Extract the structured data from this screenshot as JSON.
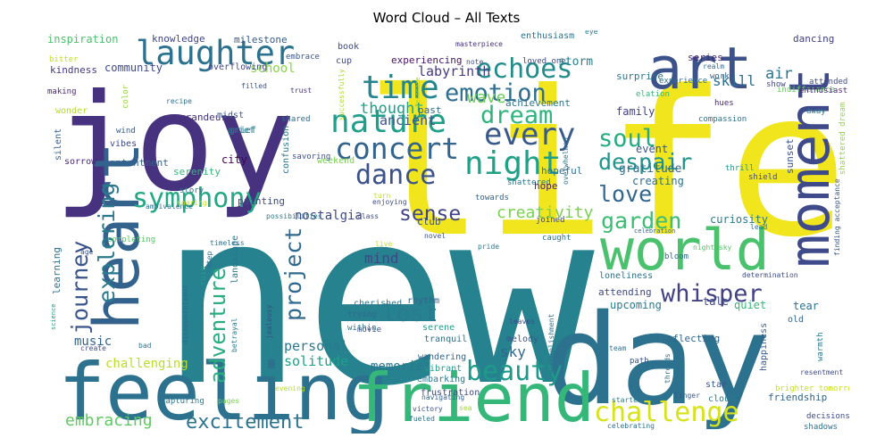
{
  "chart_data": {
    "type": "wordcloud",
    "title": "Word Cloud – All Texts",
    "background": "#ffffff",
    "colormap": "viridis",
    "words": [
      {
        "text": "new",
        "color": "#26828e"
      },
      {
        "text": "life",
        "color": "#f1e51d"
      },
      {
        "text": "joy",
        "color": "#46327e"
      },
      {
        "text": "day",
        "color": "#2c728e"
      },
      {
        "text": "feeling",
        "color": "#2c728e"
      },
      {
        "text": "friend",
        "color": "#35b779"
      },
      {
        "text": "heart",
        "color": "#33638d"
      },
      {
        "text": "world",
        "color": "#4ac16d"
      },
      {
        "text": "art",
        "color": "#3b528b"
      },
      {
        "text": "moment",
        "color": "#3e4a89"
      },
      {
        "text": "laughter",
        "color": "#2c728e"
      },
      {
        "text": "time",
        "color": "#25858e"
      },
      {
        "text": "nature",
        "color": "#1f9e89"
      },
      {
        "text": "concert",
        "color": "#32648e"
      },
      {
        "text": "night",
        "color": "#1fa187"
      },
      {
        "text": "emotion",
        "color": "#2e6e8e"
      },
      {
        "text": "echoes",
        "color": "#228c8d"
      },
      {
        "text": "every",
        "color": "#38598c"
      },
      {
        "text": "dream",
        "color": "#2fb47c"
      },
      {
        "text": "dance",
        "color": "#3b528b"
      },
      {
        "text": "symphony",
        "color": "#22a884"
      },
      {
        "text": "journey",
        "color": "#3a548c"
      },
      {
        "text": "challenge",
        "color": "#d8e219"
      },
      {
        "text": "beauty",
        "color": "#1f9a8a"
      },
      {
        "text": "soul",
        "color": "#25ab82"
      },
      {
        "text": "despair",
        "color": "#20938c"
      },
      {
        "text": "love",
        "color": "#31678e"
      },
      {
        "text": "whisper",
        "color": "#424186"
      },
      {
        "text": "garden",
        "color": "#3dbc74"
      },
      {
        "text": "adventure",
        "color": "#27ad81"
      },
      {
        "text": "exploring",
        "color": "#2a788e"
      },
      {
        "text": "project",
        "color": "#30698e"
      },
      {
        "text": "lost",
        "color": "#297b8e"
      },
      {
        "text": "sense",
        "color": "#404588"
      },
      {
        "text": "excitement",
        "color": "#2c728e"
      },
      {
        "text": "embracing",
        "color": "#5ec962"
      },
      {
        "text": "thought",
        "color": "#1fa088"
      },
      {
        "text": "wave",
        "color": "#6ccd5a"
      },
      {
        "text": "labyrinth",
        "color": "#443983"
      },
      {
        "text": "ancient",
        "color": "#3a548c"
      },
      {
        "text": "creativity",
        "color": "#7ad151"
      },
      {
        "text": "nostalgia",
        "color": "#3e4989"
      },
      {
        "text": "mind",
        "color": "#3f4788"
      },
      {
        "text": "sky",
        "color": "#31678e"
      },
      {
        "text": "memories",
        "color": "#2a788e"
      },
      {
        "text": "personal",
        "color": "#297a8e"
      },
      {
        "text": "solitude",
        "color": "#1fa088"
      },
      {
        "text": "challenging",
        "color": "#b8de29"
      },
      {
        "text": "music",
        "color": "#33638d"
      },
      {
        "text": "inspiration",
        "color": "#4ac16d"
      },
      {
        "text": "kindness",
        "color": "#453882"
      },
      {
        "text": "community",
        "color": "#3e4a89"
      },
      {
        "text": "school",
        "color": "#86d549"
      },
      {
        "text": "knowledge",
        "color": "#404588"
      },
      {
        "text": "milestone",
        "color": "#365c8d"
      },
      {
        "text": "experiencing",
        "color": "#471164"
      },
      {
        "text": "enthusiasm",
        "color": "#2c728e"
      },
      {
        "text": "masterpiece",
        "color": "#46307e"
      },
      {
        "text": "book",
        "color": "#3f4788"
      },
      {
        "text": "loved one",
        "color": "#3f4889"
      },
      {
        "text": "note",
        "color": "#3e4c8a"
      },
      {
        "text": "storm",
        "color": "#27808e"
      },
      {
        "text": "surprise",
        "color": "#2a788e"
      },
      {
        "text": "skill",
        "color": "#2e6f8e"
      },
      {
        "text": "series",
        "color": "#482475"
      },
      {
        "text": "air",
        "color": "#2c738e"
      },
      {
        "text": "dancing",
        "color": "#424086"
      },
      {
        "text": "indifference",
        "color": "#65cb5e"
      },
      {
        "text": "realm",
        "color": "#31678e"
      },
      {
        "text": "work",
        "color": "#355f8d"
      },
      {
        "text": "attended",
        "color": "#3d4d8a"
      },
      {
        "text": "enthusiast",
        "color": "#482677"
      },
      {
        "text": "show",
        "color": "#404588"
      },
      {
        "text": "experience",
        "color": "#2d718e"
      },
      {
        "text": "elation",
        "color": "#35b779"
      },
      {
        "text": "achievement",
        "color": "#2b758e"
      },
      {
        "text": "resonate",
        "color": "#a2da37"
      },
      {
        "text": "past",
        "color": "#306a8e"
      },
      {
        "text": "successfully",
        "color": "#aadc32"
      },
      {
        "text": "trust",
        "color": "#46337f"
      },
      {
        "text": "filled",
        "color": "#3b528b"
      },
      {
        "text": "overflowing",
        "color": "#414487"
      },
      {
        "text": "embrace",
        "color": "#3a548c"
      },
      {
        "text": "cup",
        "color": "#3f4788"
      },
      {
        "text": "bitter",
        "color": "#c0df25"
      },
      {
        "text": "making",
        "color": "#482677"
      },
      {
        "text": "wonder",
        "color": "#b5de2b"
      },
      {
        "text": "recipe",
        "color": "#2d718e"
      },
      {
        "text": "color",
        "color": "#95d840"
      },
      {
        "text": "grandeur",
        "color": "#46337f"
      },
      {
        "text": "wind",
        "color": "#38598c"
      },
      {
        "text": "grief",
        "color": "#2a788e"
      },
      {
        "text": "midst",
        "color": "#3a548c"
      },
      {
        "text": "silent",
        "color": "#34618d"
      },
      {
        "text": "vibes",
        "color": "#3e4989"
      },
      {
        "text": "sorrow",
        "color": "#482878"
      },
      {
        "text": "contentment",
        "color": "#33638d"
      },
      {
        "text": "serenity",
        "color": "#35b779"
      },
      {
        "text": "city",
        "color": "#440154"
      },
      {
        "text": "story",
        "color": "#2e6e8e"
      },
      {
        "text": "soaring",
        "color": "#c8e020"
      },
      {
        "text": "painting",
        "color": "#3e4a89"
      },
      {
        "text": "confusion",
        "color": "#2a768e"
      },
      {
        "text": "weekend",
        "color": "#7ad151"
      },
      {
        "text": "savoring",
        "color": "#3d4e8a"
      },
      {
        "text": "shared",
        "color": "#2e6d8e"
      },
      {
        "text": "grief",
        "color": "#2a788e"
      },
      {
        "text": "family",
        "color": "#424186"
      },
      {
        "text": "compassion",
        "color": "#2d708e"
      },
      {
        "text": "hues",
        "color": "#482878"
      },
      {
        "text": "away",
        "color": "#2a788e"
      },
      {
        "text": "sunset",
        "color": "#3b528b"
      },
      {
        "text": "shattered dream",
        "color": "#93d741"
      },
      {
        "text": "event",
        "color": "#3a548c"
      },
      {
        "text": "hopeful",
        "color": "#2e6e8e"
      },
      {
        "text": "overwhelmed",
        "color": "#2c728e"
      },
      {
        "text": "shattered",
        "color": "#2a788e"
      },
      {
        "text": "hope",
        "color": "#482173"
      },
      {
        "text": "gratitude",
        "color": "#2f6b8e"
      },
      {
        "text": "creating",
        "color": "#2d718e"
      },
      {
        "text": "thrill",
        "color": "#1f9a8a"
      },
      {
        "text": "shield",
        "color": "#3e4a89"
      },
      {
        "text": "curiosity",
        "color": "#29798e"
      },
      {
        "text": "turn",
        "color": "#c2df23"
      },
      {
        "text": "towards",
        "color": "#33638d"
      },
      {
        "text": "enjoying",
        "color": "#3d4e8a"
      },
      {
        "text": "ambivalence",
        "color": "#2c728e"
      },
      {
        "text": "possibilities",
        "color": "#2a788e"
      },
      {
        "text": "class",
        "color": "#3e4a89"
      },
      {
        "text": "club",
        "color": "#3b528b"
      },
      {
        "text": "joined",
        "color": "#3e4989"
      },
      {
        "text": "caught",
        "color": "#2e6f8e"
      },
      {
        "text": "celebration",
        "color": "#31678e"
      },
      {
        "text": "lead",
        "color": "#2e6e8e"
      },
      {
        "text": "night sky",
        "color": "#56c667"
      },
      {
        "text": "determination",
        "color": "#3d4e8a"
      },
      {
        "text": "finding acceptance",
        "color": "#38598c"
      },
      {
        "text": "bloom",
        "color": "#31688e"
      },
      {
        "text": "completing",
        "color": "#56c667"
      },
      {
        "text": "timeless",
        "color": "#2d708e"
      },
      {
        "text": "age",
        "color": "#3b528b"
      },
      {
        "text": "learning",
        "color": "#2c728e"
      },
      {
        "text": "step",
        "color": "#306a8e"
      },
      {
        "text": "landscape",
        "color": "#2a788e"
      },
      {
        "text": "ruin",
        "color": "#1f9e89"
      },
      {
        "text": "cherished",
        "color": "#2a778e"
      },
      {
        "text": "live",
        "color": "#c0df25"
      },
      {
        "text": "novel",
        "color": "#3a548c"
      },
      {
        "text": "pride",
        "color": "#2a788e"
      },
      {
        "text": "loneliness",
        "color": "#2c728e"
      },
      {
        "text": "attending",
        "color": "#3e4989"
      },
      {
        "text": "upcoming",
        "color": "#2a788e"
      },
      {
        "text": "tale",
        "color": "#3e4a89"
      },
      {
        "text": "quiet",
        "color": "#35b779"
      },
      {
        "text": "tear",
        "color": "#2d718e"
      },
      {
        "text": "old",
        "color": "#31678e"
      },
      {
        "text": "within",
        "color": "#2b748e"
      },
      {
        "text": "rhythm",
        "color": "#33638d"
      },
      {
        "text": "trying",
        "color": "#31688e"
      },
      {
        "text": "serene",
        "color": "#1f9e89"
      },
      {
        "text": "leaves",
        "color": "#3e4a89"
      },
      {
        "text": "movie",
        "color": "#3b528b"
      },
      {
        "text": "tranquil",
        "color": "#2c728e"
      },
      {
        "text": "melody",
        "color": "#39568c"
      },
      {
        "text": "reflecting",
        "color": "#31678e"
      },
      {
        "text": "happiness",
        "color": "#355e8d"
      },
      {
        "text": "science",
        "color": "#1f9e89"
      },
      {
        "text": "create",
        "color": "#3d4d8a"
      },
      {
        "text": "disappointment",
        "color": "#31688e"
      },
      {
        "text": "betrayal",
        "color": "#2a788e"
      },
      {
        "text": "jealousy",
        "color": "#3e4989"
      },
      {
        "text": "wandering",
        "color": "#33638d"
      },
      {
        "text": "accomplishment",
        "color": "#2d718e"
      },
      {
        "text": "vibrant",
        "color": "#1f9e89"
      },
      {
        "text": "team",
        "color": "#2c728e"
      },
      {
        "text": "path",
        "color": "#3b528b"
      },
      {
        "text": "embarking",
        "color": "#2a788e"
      },
      {
        "text": "frustration",
        "color": "#3e4989"
      },
      {
        "text": "threads",
        "color": "#2c728e"
      },
      {
        "text": "linger",
        "color": "#38598c"
      },
      {
        "text": "star",
        "color": "#3a548c"
      },
      {
        "text": "bad",
        "color": "#2c728e"
      },
      {
        "text": "sea",
        "color": "#a0da39"
      },
      {
        "text": "victory",
        "color": "#3b528b"
      },
      {
        "text": "fueled",
        "color": "#2c728e"
      },
      {
        "text": "navigating",
        "color": "#33638d"
      },
      {
        "text": "started",
        "color": "#2a788e"
      },
      {
        "text": "celebrating",
        "color": "#2c728e"
      },
      {
        "text": "cloud",
        "color": "#2a788e"
      },
      {
        "text": "friendship",
        "color": "#31678e"
      },
      {
        "text": "warmth",
        "color": "#2a788e"
      },
      {
        "text": "brighter tomorrow",
        "color": "#c8e020"
      },
      {
        "text": "decisions",
        "color": "#3e4a89"
      },
      {
        "text": "shadows",
        "color": "#2c728e"
      },
      {
        "text": "capturing",
        "color": "#2a788e"
      },
      {
        "text": "pages",
        "color": "#7ad151"
      },
      {
        "text": "evening",
        "color": "#b5de2b"
      },
      {
        "text": "eye",
        "color": "#2a788e"
      },
      {
        "text": "resentment",
        "color": "#3e4a89"
      }
    ]
  }
}
